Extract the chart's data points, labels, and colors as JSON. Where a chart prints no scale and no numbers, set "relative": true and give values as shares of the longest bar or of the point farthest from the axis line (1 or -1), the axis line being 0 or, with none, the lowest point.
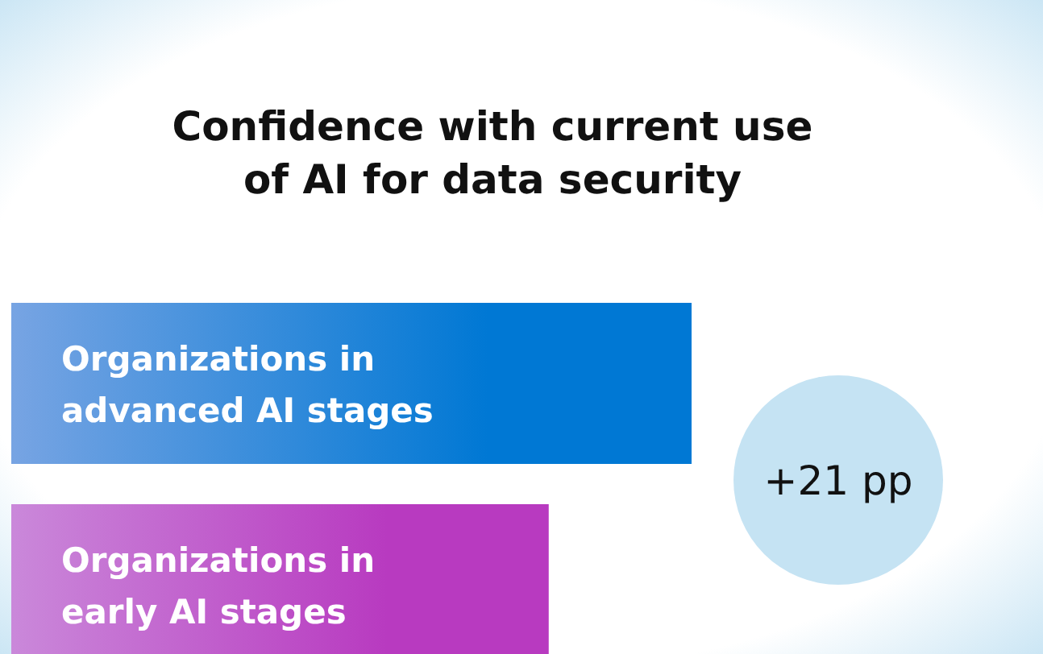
{
  "chart_data": {
    "type": "bar",
    "orientation": "horizontal",
    "relative": true,
    "title": "Confidence with current use of AI for data security",
    "categories": [
      "Organizations in advanced AI stages",
      "Organizations in early AI stages"
    ],
    "values": [
      1,
      0.79
    ],
    "colors": [
      "#0078d4",
      "#b83ac0"
    ],
    "annotations": [
      "+21 pp"
    ]
  }
}
